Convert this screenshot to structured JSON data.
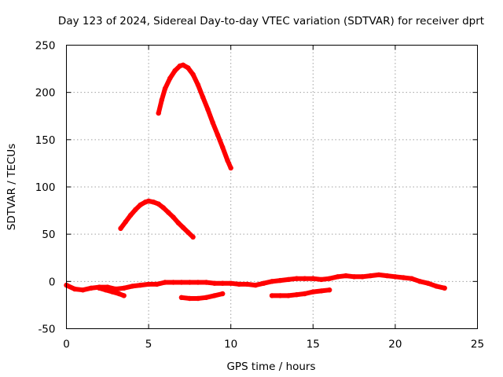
{
  "chart_data": {
    "type": "line",
    "title": "Day 123 of 2024, Sidereal Day-to-day VTEC variation (SDTVAR) for receiver dprt",
    "xlabel": "GPS time / hours",
    "ylabel": "SDTVAR / TECUs",
    "xlim": [
      0,
      25
    ],
    "ylim": [
      -50,
      250
    ],
    "xticks": [
      "0",
      "5",
      "10",
      "15",
      "20",
      "25"
    ],
    "xtick_values": [
      0,
      5,
      10,
      15,
      20,
      25
    ],
    "yticks": [
      "-50",
      "0",
      "50",
      "100",
      "150",
      "200",
      "250"
    ],
    "ytick_values": [
      -50,
      0,
      50,
      100,
      150,
      200,
      250
    ],
    "grid": true,
    "color": "#ff0000",
    "series": [
      {
        "name": "upper-arc",
        "x": [
          5.6,
          5.8,
          6.0,
          6.3,
          6.6,
          6.9,
          7.1,
          7.4,
          7.7,
          8.0,
          8.3,
          8.6,
          8.9,
          9.2,
          9.5,
          9.8,
          10.0
        ],
        "y": [
          178,
          192,
          204,
          215,
          223,
          228,
          229,
          226,
          219,
          208,
          195,
          182,
          168,
          155,
          142,
          128,
          120
        ]
      },
      {
        "name": "middle-arc",
        "x": [
          3.3,
          3.6,
          3.9,
          4.2,
          4.5,
          4.8,
          5.0,
          5.3,
          5.6,
          5.9,
          6.2,
          6.5,
          6.8,
          7.1,
          7.4,
          7.7
        ],
        "y": [
          56,
          63,
          70,
          76,
          81,
          84,
          85,
          84,
          82,
          78,
          73,
          68,
          62,
          57,
          52,
          47
        ]
      },
      {
        "name": "baseline-track",
        "x": [
          0,
          0.5,
          1,
          1.5,
          2,
          2.5,
          3,
          3.5,
          4,
          4.5,
          5,
          5.5,
          6,
          6.5,
          7,
          7.5,
          8,
          8.5,
          9,
          9.5,
          10,
          10.5,
          11,
          11.5,
          12,
          12.5,
          13,
          13.5,
          14,
          14.5,
          15,
          15.5,
          16,
          16.5,
          17,
          17.5,
          18,
          18.5,
          19,
          19.5,
          20,
          20.5,
          21,
          21.5,
          22,
          22.5,
          23
        ],
        "y": [
          -4,
          -8,
          -9,
          -7,
          -6,
          -6,
          -8,
          -7,
          -5,
          -4,
          -3,
          -3,
          -1,
          -1,
          -1,
          -1,
          -1,
          -1,
          -2,
          -2,
          -2,
          -3,
          -3,
          -4,
          -2,
          0,
          1,
          2,
          3,
          3,
          3,
          2,
          3,
          5,
          6,
          5,
          5,
          6,
          7,
          6,
          5,
          4,
          3,
          0,
          -2,
          -5,
          -7
        ]
      },
      {
        "name": "early-dip",
        "x": [
          2.0,
          2.4,
          2.8,
          3.2,
          3.5
        ],
        "y": [
          -7,
          -9,
          -11,
          -13,
          -15
        ]
      },
      {
        "name": "lower-segment-a",
        "x": [
          7.0,
          7.5,
          8.0,
          8.5,
          9.0,
          9.5
        ],
        "y": [
          -17,
          -18,
          -18,
          -17,
          -15,
          -13
        ]
      },
      {
        "name": "lower-segment-b",
        "x": [
          12.5,
          13.0,
          13.5,
          14.0,
          14.5,
          15.0,
          15.5,
          16.0
        ],
        "y": [
          -15,
          -15,
          -15,
          -14,
          -13,
          -11,
          -10,
          -9
        ]
      }
    ]
  }
}
